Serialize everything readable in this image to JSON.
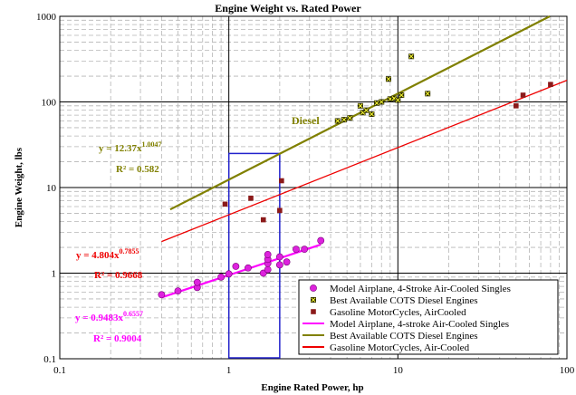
{
  "chart_data": {
    "type": "scatter",
    "title": "Engine Weight vs. Rated Power",
    "xlabel": "Engine Rated Power, hp",
    "ylabel": "Engine Weight, lbs",
    "x_scale": "log",
    "y_scale": "log",
    "xlim": [
      0.1,
      100
    ],
    "ylim": [
      0.1,
      1000
    ],
    "x_ticks": [
      "0.1",
      "1",
      "10",
      "100"
    ],
    "y_ticks": [
      "0.1",
      "1",
      "10",
      "100",
      "1000"
    ],
    "grid": true,
    "legend_position": "bottom-right",
    "series": [
      {
        "name": "Model Airplane, 4-Stroke Air-Cooled Singles",
        "kind": "points",
        "marker": "circle",
        "color": "#dd22dd",
        "points": [
          [
            0.4,
            0.56
          ],
          [
            0.5,
            0.62
          ],
          [
            0.65,
            0.68
          ],
          [
            0.65,
            0.78
          ],
          [
            0.9,
            0.9
          ],
          [
            1.0,
            0.98
          ],
          [
            1.1,
            1.2
          ],
          [
            1.3,
            1.15
          ],
          [
            1.6,
            1.0
          ],
          [
            1.7,
            1.1
          ],
          [
            1.7,
            1.3
          ],
          [
            1.7,
            1.45
          ],
          [
            1.7,
            1.65
          ],
          [
            2.0,
            1.25
          ],
          [
            2.0,
            1.55
          ],
          [
            2.2,
            1.35
          ],
          [
            2.5,
            1.9
          ],
          [
            2.8,
            1.9
          ],
          [
            3.5,
            2.4
          ]
        ]
      },
      {
        "name": "Best Available COTS Diesel Engines",
        "kind": "points",
        "marker": "square-x",
        "color": "#2a2a00",
        "points": [
          [
            4.4,
            60
          ],
          [
            4.8,
            62
          ],
          [
            5.2,
            65
          ],
          [
            6.0,
            90
          ],
          [
            6.2,
            75
          ],
          [
            6.5,
            80
          ],
          [
            7.0,
            72
          ],
          [
            7.5,
            97
          ],
          [
            8.0,
            100
          ],
          [
            8.8,
            185
          ],
          [
            9.0,
            108
          ],
          [
            9.5,
            110
          ],
          [
            10,
            105
          ],
          [
            10.5,
            120
          ],
          [
            12,
            340
          ],
          [
            15,
            125
          ]
        ]
      },
      {
        "name": "Gasoline MotorCycles, AirCooled",
        "kind": "points",
        "marker": "square",
        "color": "#8b1a1a",
        "points": [
          [
            0.95,
            6.4
          ],
          [
            1.35,
            7.5
          ],
          [
            1.6,
            4.2
          ],
          [
            2.0,
            5.4
          ],
          [
            2.05,
            12
          ],
          [
            50,
            90
          ],
          [
            55,
            120
          ],
          [
            80,
            160
          ]
        ]
      },
      {
        "name": "Model Airplane, 4-stroke Air-Cooled Singles",
        "kind": "trend",
        "color": "#ff00ff",
        "coef": 0.9483,
        "exp": 0.6557,
        "x_range": [
          0.4,
          3.5
        ],
        "equation": "y = 0.9483x",
        "equation_exp": "0.6557",
        "r2_text": "R² = 0.9004"
      },
      {
        "name": "Best Available COTS Diesel Engines",
        "kind": "trend",
        "color": "#808000",
        "coef": 12.37,
        "exp": 1.0047,
        "x_range": [
          0.45,
          90
        ],
        "equation": "y = 12.37x",
        "equation_exp": "1.0047",
        "r2_text": "R² = 0.582"
      },
      {
        "name": "Gasoline MotorCycles, Air-Cooled",
        "kind": "trend",
        "color": "#ee0000",
        "coef": 4.804,
        "exp": 0.7855,
        "x_range": [
          0.4,
          100
        ],
        "equation": "y = 4.804x",
        "equation_exp": "0.7855",
        "r2_text": "R² = 0.9668"
      }
    ],
    "annotations": [
      {
        "text": "Diesel",
        "color": "#808000"
      }
    ],
    "highlight_region": {
      "x": [
        1,
        2
      ],
      "y": [
        0.1,
        25
      ],
      "color": "#2222cc"
    }
  }
}
